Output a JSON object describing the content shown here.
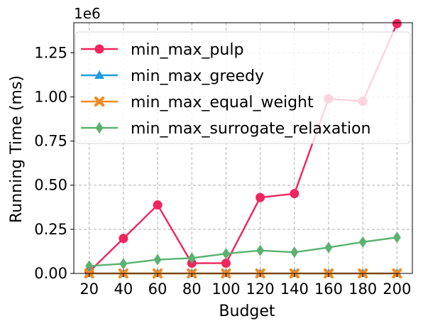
{
  "chart_data": {
    "type": "line",
    "title": "",
    "xlabel": "Budget",
    "ylabel": "Running Time (ms)",
    "y_offset_label": "1e6",
    "x": [
      20,
      40,
      60,
      80,
      100,
      120,
      140,
      160,
      180,
      200
    ],
    "x_tick_labels": [
      "20",
      "40",
      "60",
      "80",
      "100",
      "120",
      "140",
      "160",
      "180",
      "200"
    ],
    "y_ticks": [
      0,
      0.25,
      0.5,
      0.75,
      1.0,
      1.25
    ],
    "y_tick_labels": [
      "0.00",
      "0.25",
      "0.50",
      "0.75",
      "1.00",
      "1.25"
    ],
    "ylim": [
      0,
      1.42
    ],
    "y_scale_factor": 1000000,
    "grid": true,
    "legend_position": "top-left",
    "series": [
      {
        "name": "min_max_pulp",
        "color": "#f0245e",
        "marker": "circle",
        "values": [
          0.01,
          0.198,
          0.388,
          0.058,
          0.058,
          0.43,
          0.452,
          0.99,
          0.975,
          1.415
        ]
      },
      {
        "name": "min_max_greedy",
        "color": "#1f9de0",
        "marker": "triangle",
        "values": [
          0,
          0,
          0,
          0,
          0,
          0,
          0,
          0,
          0,
          0
        ]
      },
      {
        "name": "min_max_equal_weight",
        "color": "#f58a1f",
        "marker": "x",
        "values": [
          0,
          0,
          0,
          0,
          0,
          0,
          0,
          0,
          0,
          0
        ]
      },
      {
        "name": "min_max_surrogate_relaxation",
        "color": "#59b26e",
        "marker": "diamond",
        "values": [
          0.042,
          0.055,
          0.078,
          0.087,
          0.112,
          0.13,
          0.12,
          0.147,
          0.178,
          0.204
        ]
      }
    ]
  }
}
